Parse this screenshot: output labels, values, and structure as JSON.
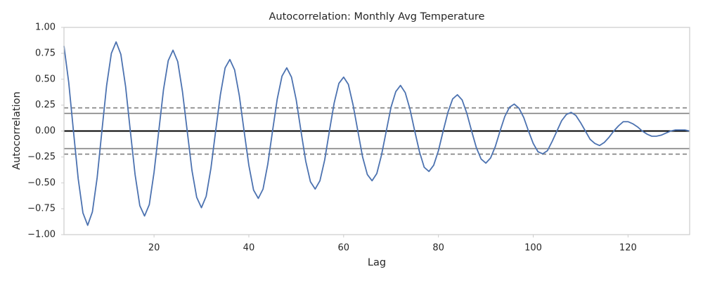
{
  "chart_data": {
    "type": "line",
    "title": "Autocorrelation: Monthly Avg Temperature",
    "x_label": "Lag",
    "y_label": "Autocorrelation",
    "x": [
      1,
      2,
      3,
      4,
      5,
      6,
      7,
      8,
      9,
      10,
      11,
      12,
      13,
      14,
      15,
      16,
      17,
      18,
      19,
      20,
      21,
      22,
      23,
      24,
      25,
      26,
      27,
      28,
      29,
      30,
      31,
      32,
      33,
      34,
      35,
      36,
      37,
      38,
      39,
      40,
      41,
      42,
      43,
      44,
      45,
      46,
      47,
      48,
      49,
      50,
      51,
      52,
      53,
      54,
      55,
      56,
      57,
      58,
      59,
      60,
      61,
      62,
      63,
      64,
      65,
      66,
      67,
      68,
      69,
      70,
      71,
      72,
      73,
      74,
      75,
      76,
      77,
      78,
      79,
      80,
      81,
      82,
      83,
      84,
      85,
      86,
      87,
      88,
      89,
      90,
      91,
      92,
      93,
      94,
      95,
      96,
      97,
      98,
      99,
      100,
      101,
      102,
      103,
      104,
      105,
      106,
      107,
      108,
      109,
      110,
      111,
      112,
      113,
      114,
      115,
      116,
      117,
      118,
      119,
      120,
      121,
      122,
      123,
      124,
      125,
      126,
      127,
      128,
      129,
      130,
      131,
      132,
      133
    ],
    "series": [
      {
        "color": "#4c72b0",
        "values": [
          0.82,
          0.47,
          0,
          -0.46,
          -0.79,
          -0.91,
          -0.78,
          -0.45,
          0,
          0.44,
          0.75,
          0.86,
          0.74,
          0.43,
          0,
          -0.42,
          -0.72,
          -0.82,
          -0.71,
          -0.4,
          0,
          0.4,
          0.68,
          0.78,
          0.67,
          0.38,
          0,
          -0.38,
          -0.64,
          -0.74,
          -0.63,
          -0.36,
          0,
          0.35,
          0.61,
          0.69,
          0.59,
          0.34,
          0,
          -0.33,
          -0.57,
          -0.65,
          -0.56,
          -0.32,
          0,
          0.31,
          0.53,
          0.61,
          0.52,
          0.3,
          0,
          -0.29,
          -0.49,
          -0.56,
          -0.48,
          -0.28,
          0,
          0.27,
          0.46,
          0.52,
          0.45,
          0.25,
          0,
          -0.25,
          -0.42,
          -0.48,
          -0.41,
          -0.23,
          0,
          0.23,
          0.38,
          0.44,
          0.37,
          0.21,
          0,
          -0.2,
          -0.35,
          -0.39,
          -0.33,
          -0.19,
          0,
          0.18,
          0.31,
          0.35,
          0.3,
          0.17,
          0,
          -0.16,
          -0.27,
          -0.31,
          -0.26,
          -0.15,
          0,
          0.14,
          0.23,
          0.26,
          0.22,
          0.13,
          0,
          -0.12,
          -0.2,
          -0.22,
          -0.19,
          -0.1,
          0,
          0.1,
          0.16,
          0.18,
          0.15,
          0.08,
          0,
          -0.08,
          -0.12,
          -0.14,
          -0.11,
          -0.06,
          0,
          0.05,
          0.09,
          0.09,
          0.07,
          0.04,
          0,
          -0.03,
          -0.05,
          -0.05,
          -0.04,
          -0.02,
          0,
          0.01,
          0.01,
          0.01,
          0
        ]
      }
    ],
    "reference_lines": [
      {
        "value": 0,
        "color": "#000000",
        "style": "solid"
      },
      {
        "value": 0.17,
        "color": "#808080",
        "style": "solid"
      },
      {
        "value": -0.17,
        "color": "#808080",
        "style": "solid"
      },
      {
        "value": 0.223,
        "color": "#808080",
        "style": "dashed"
      },
      {
        "value": -0.223,
        "color": "#808080",
        "style": "dashed"
      }
    ],
    "xlim": [
      1,
      133
    ],
    "xticks": [
      20,
      40,
      60,
      80,
      100,
      120
    ],
    "ylim": [
      -1,
      1
    ],
    "yticks": [
      {
        "value": -1,
        "label": "−1.00"
      },
      {
        "value": -0.75,
        "label": "−0.75"
      },
      {
        "value": -0.5,
        "label": "−0.50"
      },
      {
        "value": -0.25,
        "label": "−0.25"
      },
      {
        "value": 0,
        "label": "0.00"
      },
      {
        "value": 0.25,
        "label": "0.25"
      },
      {
        "value": 0.5,
        "label": "0.50"
      },
      {
        "value": 0.75,
        "label": "0.75"
      },
      {
        "value": 1,
        "label": "1.00"
      }
    ],
    "grid": false
  }
}
